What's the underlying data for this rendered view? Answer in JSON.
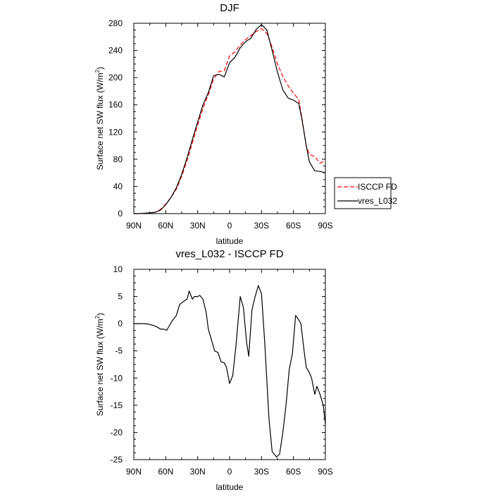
{
  "chart_data": [
    {
      "type": "line",
      "title": "DJF",
      "xlabel": "latitude",
      "ylabel": "Surface net SW flux (W/m",
      "ylabel_sup": "2",
      "ylabel_close": ")",
      "x_tick_labels": [
        "90N",
        "60N",
        "30N",
        "0",
        "30S",
        "60S",
        "90S"
      ],
      "x_tick_values": [
        90,
        60,
        30,
        0,
        -30,
        -60,
        -90
      ],
      "xlim": [
        90,
        -90
      ],
      "ylim": [
        0,
        280
      ],
      "y_ticks": [
        0,
        40,
        80,
        120,
        160,
        200,
        240,
        280
      ],
      "legend": {
        "placement": "right",
        "entries": [
          "ISCCP FD",
          "vres_L032"
        ]
      },
      "series": [
        {
          "name": "ISCCP FD",
          "color": "#ff0000",
          "dash": "dashed",
          "x": [
            90,
            85,
            80,
            75,
            70,
            65,
            60,
            55,
            50,
            45,
            40,
            35,
            30,
            25,
            20,
            15,
            10,
            5,
            0,
            -5,
            -10,
            -15,
            -20,
            -25,
            -30,
            -35,
            -40,
            -45,
            -50,
            -55,
            -60,
            -65,
            -68,
            -72,
            -75,
            -80,
            -85,
            -90
          ],
          "y": [
            0,
            0,
            0.5,
            1,
            2,
            6,
            14,
            24,
            36,
            55,
            78,
            104,
            130,
            155,
            175,
            198,
            209,
            210,
            232,
            238,
            248,
            256,
            262,
            268,
            272,
            265,
            245,
            220,
            202,
            188,
            177,
            168,
            140,
            100,
            87,
            84,
            74,
            78
          ]
        },
        {
          "name": "vres_L032",
          "color": "#000000",
          "dash": "solid",
          "x": [
            90,
            85,
            80,
            75,
            70,
            65,
            60,
            55,
            50,
            45,
            40,
            35,
            30,
            25,
            20,
            15,
            10,
            5,
            0,
            -5,
            -10,
            -15,
            -20,
            -25,
            -30,
            -35,
            -40,
            -45,
            -50,
            -55,
            -60,
            -65,
            -68,
            -72,
            -75,
            -80,
            -85,
            -90
          ],
          "y": [
            0,
            0,
            0.5,
            1,
            2,
            5,
            13,
            24,
            38,
            58,
            82,
            109,
            135,
            160,
            178,
            203,
            205,
            201,
            222,
            230,
            244,
            253,
            258,
            271,
            278,
            270,
            240,
            208,
            182,
            170,
            167,
            162,
            138,
            100,
            76,
            63,
            62,
            60
          ]
        }
      ]
    },
    {
      "type": "line",
      "title": "vres_L032 - ISCCP FD",
      "xlabel": "latitude",
      "ylabel": "Surface net SW flux (W/m",
      "ylabel_sup": "2",
      "ylabel_close": ")",
      "x_tick_labels": [
        "90N",
        "60N",
        "30N",
        "0",
        "30S",
        "60S",
        "90S"
      ],
      "x_tick_values": [
        90,
        60,
        30,
        0,
        -30,
        -60,
        -90
      ],
      "xlim": [
        90,
        -90
      ],
      "ylim": [
        -25,
        10
      ],
      "y_ticks": [
        10,
        5,
        0,
        -5,
        -10,
        -15,
        -20,
        -25
      ],
      "series": [
        {
          "color": "#000000",
          "dash": "solid",
          "x": [
            90,
            85,
            80,
            76,
            72,
            68,
            65,
            62,
            59,
            57,
            54,
            50,
            47,
            44,
            40,
            38,
            35,
            33,
            30,
            28,
            25,
            22,
            20,
            17,
            14,
            11,
            8,
            5,
            3,
            0,
            -3,
            -6,
            -10,
            -13,
            -16,
            -18,
            -21,
            -24,
            -27,
            -30,
            -33,
            -37,
            -40,
            -44,
            -47,
            -50,
            -53,
            -56,
            -59,
            -62,
            -64,
            -67,
            -70,
            -72,
            -75,
            -77,
            -80,
            -82,
            -85,
            -88,
            -90
          ],
          "y": [
            0,
            0,
            0,
            -0.1,
            -0.3,
            -0.6,
            -1,
            -1,
            -1.2,
            -0.5,
            0.5,
            1.5,
            3.5,
            4,
            4.5,
            6,
            4.5,
            5,
            5,
            5.2,
            4.5,
            2,
            -1,
            -3,
            -5,
            -5.3,
            -7,
            -7.2,
            -8,
            -11,
            -9.5,
            -4,
            5,
            3,
            -3.5,
            -6,
            2.5,
            5,
            7,
            5.5,
            -3.5,
            -17.5,
            -23.5,
            -24.5,
            -24,
            -20,
            -15,
            -8.5,
            -5.5,
            1.5,
            1,
            0,
            -5,
            -8,
            -9,
            -10,
            -13,
            -11.5,
            -13,
            -15,
            -18.5
          ]
        }
      ]
    }
  ]
}
